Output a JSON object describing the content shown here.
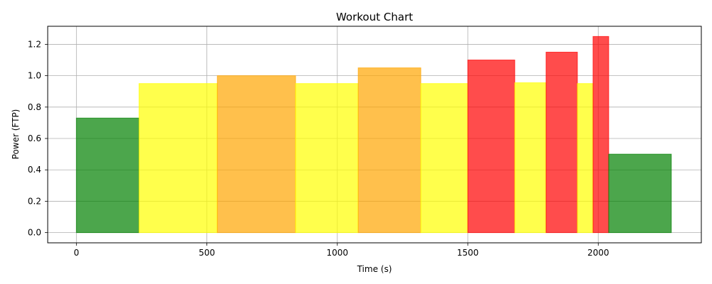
{
  "chart_data": {
    "type": "bar",
    "title": "Workout Chart",
    "xlabel": "Time (s)",
    "ylabel": "Power (FTP)",
    "xlim": [
      -110,
      2395
    ],
    "ylim": [
      -0.065,
      1.315
    ],
    "grid": true,
    "x_ticks": [
      0,
      500,
      1000,
      1500,
      2000
    ],
    "y_ticks": [
      0.0,
      0.2,
      0.4,
      0.6,
      0.8,
      1.0,
      1.2
    ],
    "x_tick_labels": [
      "0",
      "500",
      "1000",
      "1500",
      "2000"
    ],
    "y_tick_labels": [
      "0.0",
      "0.2",
      "0.4",
      "0.6",
      "0.8",
      "1.0",
      "1.2"
    ],
    "zone_colors": {
      "green": "#008000",
      "yellow": "#ffff00",
      "orange": "#ffa500",
      "red": "#ff0000"
    },
    "intervals": [
      {
        "start": 0,
        "end": 240,
        "power": 0.73,
        "zone": "green"
      },
      {
        "start": 240,
        "end": 540,
        "power": 0.95,
        "zone": "yellow"
      },
      {
        "start": 540,
        "end": 840,
        "power": 1.0,
        "zone": "orange"
      },
      {
        "start": 840,
        "end": 1080,
        "power": 0.95,
        "zone": "yellow"
      },
      {
        "start": 1080,
        "end": 1320,
        "power": 1.05,
        "zone": "orange"
      },
      {
        "start": 1320,
        "end": 1500,
        "power": 0.95,
        "zone": "yellow"
      },
      {
        "start": 1500,
        "end": 1680,
        "power": 1.1,
        "zone": "red"
      },
      {
        "start": 1680,
        "end": 1800,
        "power": 0.955,
        "zone": "yellow"
      },
      {
        "start": 1800,
        "end": 1920,
        "power": 1.15,
        "zone": "red"
      },
      {
        "start": 1920,
        "end": 1980,
        "power": 0.95,
        "zone": "yellow"
      },
      {
        "start": 1980,
        "end": 2040,
        "power": 1.25,
        "zone": "red"
      },
      {
        "start": 2040,
        "end": 2280,
        "power": 0.5,
        "zone": "green"
      }
    ]
  }
}
